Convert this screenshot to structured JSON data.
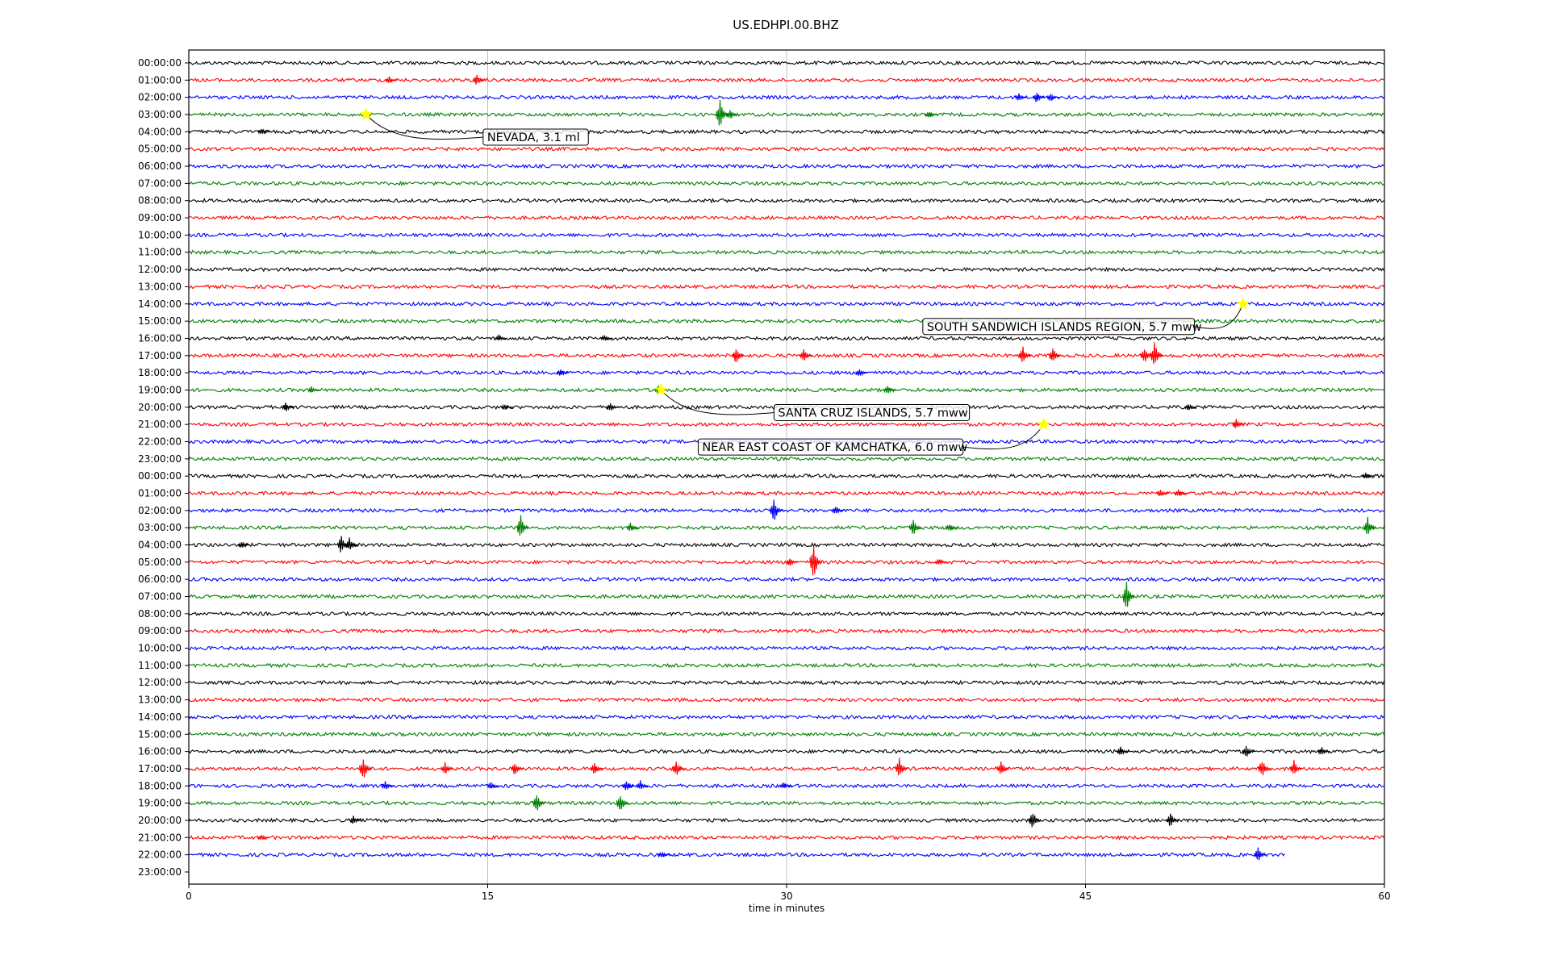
{
  "chart_data": {
    "type": "line",
    "title": "US.EDHPI.00.BHZ",
    "xlabel": "time in minutes",
    "ylabel": "",
    "xlim": [
      0,
      60
    ],
    "x_ticks": [
      0,
      15,
      30,
      45,
      60
    ],
    "grid": "vertical",
    "trace_colors": [
      "#000000",
      "#ff0000",
      "#0000ff",
      "#008000"
    ],
    "row_labels": [
      "00:00:00",
      "01:00:00",
      "02:00:00",
      "03:00:00",
      "04:00:00",
      "05:00:00",
      "06:00:00",
      "07:00:00",
      "08:00:00",
      "09:00:00",
      "10:00:00",
      "11:00:00",
      "12:00:00",
      "13:00:00",
      "14:00:00",
      "15:00:00",
      "16:00:00",
      "17:00:00",
      "18:00:00",
      "19:00:00",
      "20:00:00",
      "21:00:00",
      "22:00:00",
      "23:00:00",
      "00:00:00",
      "01:00:00",
      "02:00:00",
      "03:00:00",
      "04:00:00",
      "05:00:00",
      "06:00:00",
      "07:00:00",
      "08:00:00",
      "09:00:00",
      "10:00:00",
      "11:00:00",
      "12:00:00",
      "13:00:00",
      "14:00:00",
      "15:00:00",
      "16:00:00",
      "17:00:00",
      "18:00:00",
      "19:00:00",
      "20:00:00",
      "21:00:00",
      "22:00:00",
      "23:00:00"
    ],
    "last_row_with_data": 46,
    "last_row_end_minute": 55,
    "spikes": [
      {
        "row": 1,
        "minute": 10.2,
        "amp": 0.4
      },
      {
        "row": 1,
        "minute": 14.6,
        "amp": 0.7
      },
      {
        "row": 2,
        "minute": 41.8,
        "amp": 0.5
      },
      {
        "row": 2,
        "minute": 42.7,
        "amp": 0.7
      },
      {
        "row": 2,
        "minute": 43.4,
        "amp": 0.5
      },
      {
        "row": 3,
        "minute": 26.8,
        "amp": 1.7
      },
      {
        "row": 3,
        "minute": 27.3,
        "amp": 0.6
      },
      {
        "row": 3,
        "minute": 37.3,
        "amp": 0.4
      },
      {
        "row": 4,
        "minute": 3.8,
        "amp": 0.4
      },
      {
        "row": 16,
        "minute": 15.7,
        "amp": 0.4
      },
      {
        "row": 16,
        "minute": 21.0,
        "amp": 0.4
      },
      {
        "row": 17,
        "minute": 27.6,
        "amp": 1.0
      },
      {
        "row": 17,
        "minute": 31.0,
        "amp": 0.8
      },
      {
        "row": 17,
        "minute": 42.0,
        "amp": 1.0
      },
      {
        "row": 17,
        "minute": 43.5,
        "amp": 1.0
      },
      {
        "row": 17,
        "minute": 48.1,
        "amp": 0.9
      },
      {
        "row": 17,
        "minute": 48.6,
        "amp": 1.5
      },
      {
        "row": 18,
        "minute": 18.8,
        "amp": 0.5
      },
      {
        "row": 18,
        "minute": 33.8,
        "amp": 0.5
      },
      {
        "row": 19,
        "minute": 6.3,
        "amp": 0.4
      },
      {
        "row": 19,
        "minute": 23.7,
        "amp": 0.5
      },
      {
        "row": 19,
        "minute": 35.2,
        "amp": 0.5
      },
      {
        "row": 20,
        "minute": 5.0,
        "amp": 0.6
      },
      {
        "row": 20,
        "minute": 16.0,
        "amp": 0.4
      },
      {
        "row": 20,
        "minute": 21.3,
        "amp": 0.5
      },
      {
        "row": 20,
        "minute": 50.3,
        "amp": 0.4
      },
      {
        "row": 21,
        "minute": 52.7,
        "amp": 0.6
      },
      {
        "row": 24,
        "minute": 59.2,
        "amp": 0.4
      },
      {
        "row": 25,
        "minute": 48.9,
        "amp": 0.4
      },
      {
        "row": 25,
        "minute": 49.8,
        "amp": 0.5
      },
      {
        "row": 26,
        "minute": 29.5,
        "amp": 1.5
      },
      {
        "row": 26,
        "minute": 32.6,
        "amp": 0.6
      },
      {
        "row": 27,
        "minute": 16.8,
        "amp": 1.4
      },
      {
        "row": 27,
        "minute": 22.3,
        "amp": 0.6
      },
      {
        "row": 27,
        "minute": 36.5,
        "amp": 1.0
      },
      {
        "row": 27,
        "minute": 38.3,
        "amp": 0.5
      },
      {
        "row": 27,
        "minute": 59.3,
        "amp": 1.2
      },
      {
        "row": 28,
        "minute": 2.8,
        "amp": 0.4
      },
      {
        "row": 28,
        "minute": 7.8,
        "amp": 1.1
      },
      {
        "row": 28,
        "minute": 8.2,
        "amp": 0.8
      },
      {
        "row": 29,
        "minute": 31.5,
        "amp": 2.0
      },
      {
        "row": 29,
        "minute": 30.3,
        "amp": 0.5
      },
      {
        "row": 29,
        "minute": 37.8,
        "amp": 0.4
      },
      {
        "row": 31,
        "minute": 47.2,
        "amp": 1.7
      },
      {
        "row": 40,
        "minute": 46.9,
        "amp": 0.6
      },
      {
        "row": 40,
        "minute": 53.2,
        "amp": 0.8
      },
      {
        "row": 40,
        "minute": 57.0,
        "amp": 0.5
      },
      {
        "row": 41,
        "minute": 8.9,
        "amp": 1.4
      },
      {
        "row": 41,
        "minute": 13.0,
        "amp": 0.7
      },
      {
        "row": 41,
        "minute": 16.5,
        "amp": 0.8
      },
      {
        "row": 41,
        "minute": 20.5,
        "amp": 0.7
      },
      {
        "row": 41,
        "minute": 24.6,
        "amp": 1.0
      },
      {
        "row": 41,
        "minute": 35.8,
        "amp": 1.2
      },
      {
        "row": 41,
        "minute": 40.9,
        "amp": 0.9
      },
      {
        "row": 41,
        "minute": 54.0,
        "amp": 1.1
      },
      {
        "row": 41,
        "minute": 55.6,
        "amp": 1.0
      },
      {
        "row": 42,
        "minute": 10.0,
        "amp": 0.5
      },
      {
        "row": 42,
        "minute": 15.3,
        "amp": 0.4
      },
      {
        "row": 42,
        "minute": 22.1,
        "amp": 0.7
      },
      {
        "row": 42,
        "minute": 22.8,
        "amp": 0.6
      },
      {
        "row": 42,
        "minute": 30.0,
        "amp": 0.4
      },
      {
        "row": 43,
        "minute": 17.6,
        "amp": 1.1
      },
      {
        "row": 43,
        "minute": 21.8,
        "amp": 1.2
      },
      {
        "row": 44,
        "minute": 8.4,
        "amp": 0.5
      },
      {
        "row": 44,
        "minute": 42.5,
        "amp": 1.1
      },
      {
        "row": 44,
        "minute": 49.4,
        "amp": 0.9
      },
      {
        "row": 45,
        "minute": 3.8,
        "amp": 0.3
      },
      {
        "row": 46,
        "minute": 23.9,
        "amp": 0.4
      },
      {
        "row": 46,
        "minute": 53.8,
        "amp": 0.8
      }
    ],
    "events": [
      {
        "row": 3,
        "minute": 8.9,
        "label": "NEVADA, 3.1 ml"
      },
      {
        "row": 14,
        "minute": 52.9,
        "label": "SOUTH SANDWICH ISLANDS REGION, 5.7 mww"
      },
      {
        "row": 19,
        "minute": 23.7,
        "label": "SANTA CRUZ ISLANDS, 5.7 mww"
      },
      {
        "row": 21,
        "minute": 42.9,
        "label": "NEAR EAST COAST OF KAMCHATKA, 6.0 mww"
      }
    ],
    "event_marker_color": "#ffff00"
  }
}
